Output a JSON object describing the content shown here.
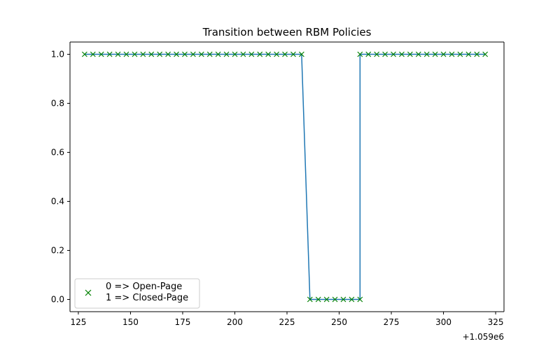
{
  "chart_data": {
    "type": "line",
    "title": "Transition between RBM Policies",
    "xlabel": "",
    "ylabel": "",
    "x_offset_label": "+1.059e6",
    "xlim": [
      121,
      329
    ],
    "ylim": [
      -0.05,
      1.05
    ],
    "x_ticks": [
      125,
      150,
      175,
      200,
      225,
      250,
      275,
      300,
      325
    ],
    "x_tick_labels": [
      "125",
      "150",
      "175",
      "200",
      "225",
      "250",
      "275",
      "300",
      "325"
    ],
    "y_ticks": [
      0.0,
      0.2,
      0.4,
      0.6,
      0.8,
      1.0
    ],
    "y_tick_labels": [
      "0.0",
      "0.2",
      "0.4",
      "0.6",
      "0.8",
      "1.0"
    ],
    "grid": false,
    "legend": {
      "placement": "lower-left",
      "lines": [
        "0 => Open-Page",
        "1 => Closed-Page"
      ]
    },
    "colors": {
      "line": "#1f77b4",
      "marker": "#008000"
    },
    "series": [
      {
        "x": [
          128,
          132,
          136,
          140,
          144,
          148,
          152,
          156,
          160,
          164,
          168,
          172,
          176,
          180,
          184,
          188,
          192,
          196,
          200,
          204,
          208,
          212,
          216,
          220,
          224,
          228,
          232,
          236,
          240,
          244,
          248,
          252,
          256,
          260,
          260,
          264,
          268,
          272,
          276,
          280,
          284,
          288,
          292,
          296,
          300,
          304,
          308,
          312,
          316,
          320
        ],
        "y": [
          1,
          1,
          1,
          1,
          1,
          1,
          1,
          1,
          1,
          1,
          1,
          1,
          1,
          1,
          1,
          1,
          1,
          1,
          1,
          1,
          1,
          1,
          1,
          1,
          1,
          1,
          1,
          0,
          0,
          0,
          0,
          0,
          0,
          0,
          1,
          1,
          1,
          1,
          1,
          1,
          1,
          1,
          1,
          1,
          1,
          1,
          1,
          1,
          1,
          1
        ]
      }
    ]
  }
}
